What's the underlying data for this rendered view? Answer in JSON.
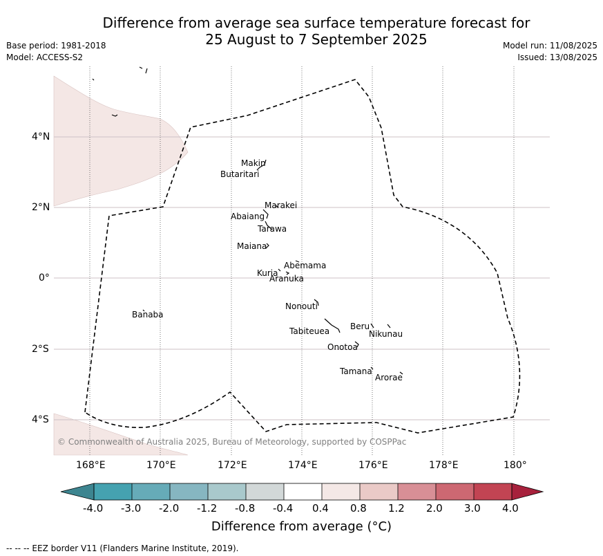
{
  "header": {
    "title_line1": "Difference from average sea surface temperature forecast for",
    "title_line2": "25 August to 7 September 2025",
    "base_period": "Base period: 1981-2018",
    "model": "Model: ACCESS-S2",
    "model_run": "Model run: 11/08/2025",
    "issued": "Issued: 13/08/2025"
  },
  "map": {
    "lon_ticks": [
      "168°E",
      "170°E",
      "172°E",
      "174°E",
      "176°E",
      "178°E",
      "180°"
    ],
    "lat_ticks": [
      "4°N",
      "2°N",
      "0°",
      "2°S",
      "4°S"
    ],
    "copyright": "© Commonwealth of Australia 2025, Bureau of Meteorology, supported by COSPPac",
    "islands": [
      {
        "name": "Makin"
      },
      {
        "name": "Butaritari"
      },
      {
        "name": "Marakei"
      },
      {
        "name": "Abaiang"
      },
      {
        "name": "Tarawa"
      },
      {
        "name": "Maiana"
      },
      {
        "name": "Abemama"
      },
      {
        "name": "Kuria"
      },
      {
        "name": "Aranuka"
      },
      {
        "name": "Nonouti"
      },
      {
        "name": "Banaba"
      },
      {
        "name": "Beru"
      },
      {
        "name": "Tabiteuea"
      },
      {
        "name": "Nikunau"
      },
      {
        "name": "Onotoa"
      },
      {
        "name": "Tamana"
      },
      {
        "name": "Arorae"
      }
    ]
  },
  "colorbar": {
    "title": "Difference from average (°C)",
    "tick_labels": [
      "-4.0",
      "-3.0",
      "-2.0",
      "-1.2",
      "-0.8",
      "-0.4",
      "0.4",
      "0.8",
      "1.2",
      "2.0",
      "3.0",
      "4.0"
    ],
    "colors": [
      "#3d8590",
      "#45a2b0",
      "#66abb8",
      "#86b6c1",
      "#a9c9cc",
      "#d2d8d8",
      "#ffffff",
      "#f4e8e6",
      "#eacac7",
      "#d88f96",
      "#cd6872",
      "#c24453",
      "#a7213c"
    ]
  },
  "footer": {
    "eez_note": "--  --  -- EEZ border V11 (Flanders Marine Institute, 2019)."
  }
}
